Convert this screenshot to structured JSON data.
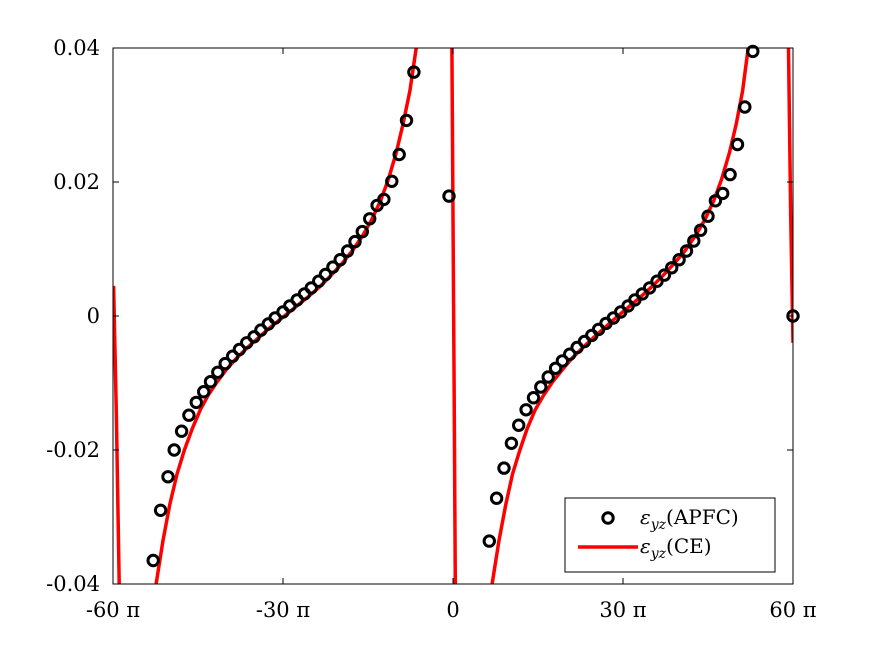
{
  "chart_data": {
    "type": "scatter",
    "xlim": [
      -60,
      60
    ],
    "ylim": [
      -0.04,
      0.04
    ],
    "x_unit": "π",
    "x_ticks": [
      -60,
      -30,
      0,
      30,
      60
    ],
    "x_tick_labels": [
      "-60 π",
      "-30 π",
      "0",
      "30 π",
      "60 π"
    ],
    "y_ticks": [
      -0.04,
      -0.02,
      0,
      0.02,
      0.04
    ],
    "y_tick_labels": [
      "-0.04",
      "-0.02",
      "0",
      "0.02",
      "0.04"
    ],
    "grid": false,
    "legend_position": "bottom-right",
    "colors": {
      "apfc": "#000000",
      "ce": "#ff0000"
    },
    "series": [
      {
        "name": "εyz(APFC)",
        "kind": "markers",
        "points": [
          [
            -52.9,
            -0.0365
          ],
          [
            -51.6,
            -0.029
          ],
          [
            -50.3,
            -0.024
          ],
          [
            -49.2,
            -0.02
          ],
          [
            -47.9,
            -0.0172
          ],
          [
            -46.6,
            -0.0148
          ],
          [
            -45.3,
            -0.0129
          ],
          [
            -44.0,
            -0.0113
          ],
          [
            -42.8,
            -0.0098
          ],
          [
            -41.5,
            -0.0084
          ],
          [
            -40.2,
            -0.0071
          ],
          [
            -38.9,
            -0.006
          ],
          [
            -37.7,
            -0.005
          ],
          [
            -36.4,
            -0.004
          ],
          [
            -35.1,
            -0.0031
          ],
          [
            -33.9,
            -0.0021
          ],
          [
            -32.6,
            -0.0012
          ],
          [
            -31.4,
            -0.0003
          ],
          [
            -30.0,
            0.0006
          ],
          [
            -28.8,
            0.0015
          ],
          [
            -27.5,
            0.0024
          ],
          [
            -26.2,
            0.0033
          ],
          [
            -25.0,
            0.0042
          ],
          [
            -23.7,
            0.0052
          ],
          [
            -22.5,
            0.0062
          ],
          [
            -21.2,
            0.0073
          ],
          [
            -19.9,
            0.0084
          ],
          [
            -18.6,
            0.0097
          ],
          [
            -17.3,
            0.0111
          ],
          [
            -16.0,
            0.0126
          ],
          [
            -14.7,
            0.0145
          ],
          [
            -13.4,
            0.0165
          ],
          [
            -12.2,
            0.0174
          ],
          [
            -10.8,
            0.0201
          ],
          [
            -9.5,
            0.0241
          ],
          [
            -8.2,
            0.0292
          ],
          [
            -6.9,
            0.0364
          ],
          [
            -0.7,
            0.0179
          ],
          [
            6.4,
            -0.0336
          ],
          [
            7.7,
            -0.0272
          ],
          [
            9.0,
            -0.0227
          ],
          [
            10.3,
            -0.019
          ],
          [
            11.6,
            -0.0163
          ],
          [
            12.9,
            -0.014
          ],
          [
            14.2,
            -0.0122
          ],
          [
            15.5,
            -0.0106
          ],
          [
            16.8,
            -0.0091
          ],
          [
            18.1,
            -0.0078
          ],
          [
            19.3,
            -0.0067
          ],
          [
            20.6,
            -0.0057
          ],
          [
            21.9,
            -0.0047
          ],
          [
            23.2,
            -0.0038
          ],
          [
            24.5,
            -0.0029
          ],
          [
            25.7,
            -0.002
          ],
          [
            27.0,
            -0.0011
          ],
          [
            28.3,
            -0.0003
          ],
          [
            29.6,
            0.0006
          ],
          [
            30.9,
            0.0015
          ],
          [
            32.1,
            0.0024
          ],
          [
            33.4,
            0.0033
          ],
          [
            34.7,
            0.0042
          ],
          [
            36.0,
            0.0052
          ],
          [
            37.3,
            0.0061
          ],
          [
            38.6,
            0.0072
          ],
          [
            39.9,
            0.0084
          ],
          [
            41.2,
            0.0097
          ],
          [
            42.5,
            0.0112
          ],
          [
            43.7,
            0.0128
          ],
          [
            45.0,
            0.0149
          ],
          [
            46.3,
            0.0172
          ],
          [
            47.6,
            0.0183
          ],
          [
            48.9,
            0.0211
          ],
          [
            50.2,
            0.0256
          ],
          [
            51.5,
            0.0312
          ],
          [
            52.9,
            0.0395
          ],
          [
            60.0,
            0.0
          ]
        ]
      },
      {
        "name": "εyz(CE)",
        "kind": "curve",
        "segments": [
          [
            [
              -59.9,
              0.0045
            ],
            [
              -59.4,
              -0.015
            ],
            [
              -58.9,
              -0.04
            ]
          ],
          [
            [
              -52.4,
              -0.04
            ],
            [
              -51.2,
              -0.0336
            ],
            [
              -50.0,
              -0.0282
            ],
            [
              -48.7,
              -0.0236
            ],
            [
              -47.4,
              -0.02
            ],
            [
              -46.0,
              -0.0168
            ],
            [
              -44.6,
              -0.014
            ],
            [
              -43.2,
              -0.0118
            ],
            [
              -41.6,
              -0.0098
            ],
            [
              -40.0,
              -0.008
            ],
            [
              -38.2,
              -0.0063
            ],
            [
              -36.4,
              -0.0048
            ],
            [
              -34.4,
              -0.0033
            ],
            [
              -32.4,
              -0.0018
            ],
            [
              -30.2,
              -0.0003
            ],
            [
              -28.0,
              0.0012
            ],
            [
              -25.8,
              0.0027
            ],
            [
              -23.6,
              0.0043
            ],
            [
              -21.6,
              0.006
            ],
            [
              -19.6,
              0.0078
            ],
            [
              -17.8,
              0.0097
            ],
            [
              -16.0,
              0.0119
            ],
            [
              -14.4,
              0.0143
            ],
            [
              -12.8,
              0.0172
            ],
            [
              -11.4,
              0.0204
            ],
            [
              -10.0,
              0.0244
            ],
            [
              -8.8,
              0.0287
            ],
            [
              -7.6,
              0.0336
            ],
            [
              -6.5,
              0.04
            ]
          ],
          [
            [
              -0.2,
              0.04
            ],
            [
              0.0,
              0.015
            ],
            [
              0.2,
              -0.01
            ],
            [
              0.4,
              -0.04
            ]
          ],
          [
            [
              6.9,
              -0.04
            ],
            [
              8.1,
              -0.0336
            ],
            [
              9.3,
              -0.0282
            ],
            [
              10.5,
              -0.0236
            ],
            [
              11.8,
              -0.02
            ],
            [
              13.1,
              -0.0168
            ],
            [
              14.5,
              -0.014
            ],
            [
              16.0,
              -0.0118
            ],
            [
              17.6,
              -0.0098
            ],
            [
              19.3,
              -0.008
            ],
            [
              21.0,
              -0.0063
            ],
            [
              22.8,
              -0.0048
            ],
            [
              24.7,
              -0.0033
            ],
            [
              26.7,
              -0.0018
            ],
            [
              28.7,
              -0.0003
            ],
            [
              30.8,
              0.0012
            ],
            [
              32.9,
              0.0027
            ],
            [
              35.0,
              0.0043
            ],
            [
              37.0,
              0.006
            ],
            [
              39.0,
              0.0078
            ],
            [
              40.9,
              0.0097
            ],
            [
              42.7,
              0.0119
            ],
            [
              44.4,
              0.0143
            ],
            [
              46.0,
              0.0172
            ],
            [
              47.4,
              0.0204
            ],
            [
              48.8,
              0.0244
            ],
            [
              50.0,
              0.0287
            ],
            [
              51.1,
              0.0336
            ],
            [
              52.1,
              0.04
            ]
          ],
          [
            [
              59.2,
              0.04
            ],
            [
              59.6,
              0.015
            ],
            [
              60.0,
              -0.004
            ]
          ]
        ]
      }
    ],
    "legend": [
      {
        "marker": "circle",
        "sym": "ε",
        "sub": "yz",
        "tail": "(APFC)"
      },
      {
        "marker": "line",
        "sym": "ε",
        "sub": "yz",
        "tail": "(CE)"
      }
    ]
  }
}
